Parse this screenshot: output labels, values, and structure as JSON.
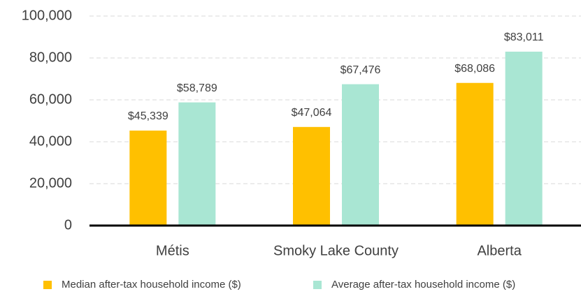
{
  "chart_data": {
    "type": "bar",
    "categories": [
      "Métis",
      "Smoky Lake County",
      "Alberta"
    ],
    "series": [
      {
        "name": "Median after-tax household income ($)",
        "color": "#FFC000",
        "values": [
          45339,
          47064,
          68086
        ],
        "value_labels": [
          "$45,339",
          "$47,064",
          "$68,086"
        ]
      },
      {
        "name": "Average after-tax household income ($)",
        "color": "#A9E6D3",
        "values": [
          58789,
          67476,
          83011
        ],
        "value_labels": [
          "$58,789",
          "$67,476",
          "$83,011"
        ]
      }
    ],
    "ylim": [
      0,
      100000
    ],
    "yticks": [
      0,
      {
        "value": 20000,
        "label": "20,000"
      },
      {
        "value": 40000,
        "label": "40,000"
      },
      {
        "value": 60000,
        "label": "60,000"
      },
      {
        "value": 80000,
        "label": "80,000"
      },
      {
        "value": 100000,
        "label": "100,000"
      }
    ],
    "grid": true,
    "legend": "bottom"
  }
}
